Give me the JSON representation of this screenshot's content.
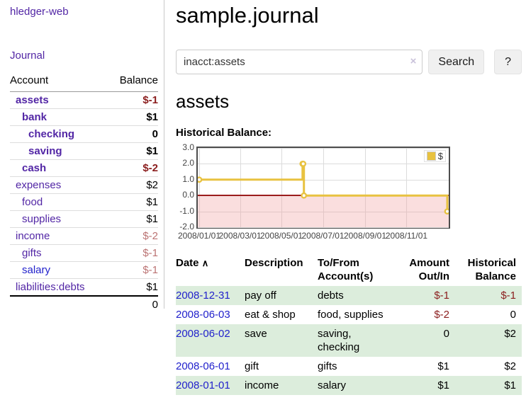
{
  "app": {
    "brand": "hledger-web",
    "nav_journal": "Journal"
  },
  "colors": {
    "accent_purple": "#5226a5",
    "link_blue": "#2222cc",
    "negative": "#8b1e1e",
    "negative_soft": "#bb7373",
    "row_highlight_green": "#dceddc",
    "series_gold": "#e8c240",
    "chart_negative_fill": "#f9dada",
    "zero_line_red": "#9b1c1c"
  },
  "sidebar": {
    "headers": {
      "account": "Account",
      "balance": "Balance"
    },
    "accounts": [
      {
        "name": "assets",
        "depth": 0,
        "bold": true,
        "balance": "$-1",
        "neg": "strong"
      },
      {
        "name": "bank",
        "depth": 1,
        "bold": true,
        "balance": "$1"
      },
      {
        "name": "checking",
        "depth": 2,
        "bold": true,
        "balance": "0"
      },
      {
        "name": "saving",
        "depth": 2,
        "bold": true,
        "balance": "$1"
      },
      {
        "name": "cash",
        "depth": 1,
        "bold": true,
        "balance": "$-2",
        "neg": "strong"
      },
      {
        "name": "expenses",
        "depth": 0,
        "bold": false,
        "balance": "$2"
      },
      {
        "name": "food",
        "depth": 1,
        "bold": false,
        "balance": "$1"
      },
      {
        "name": "supplies",
        "depth": 1,
        "bold": false,
        "balance": "$1"
      },
      {
        "name": "income",
        "depth": 0,
        "bold": false,
        "balance": "$-2",
        "neg": "soft"
      },
      {
        "name": "gifts",
        "depth": 1,
        "bold": false,
        "balance": "$-1",
        "neg": "soft"
      },
      {
        "name": "salary",
        "depth": 1,
        "bold": false,
        "balance": "$-1",
        "neg": "soft",
        "link": "blue"
      },
      {
        "name": "liabilities:debts",
        "depth": 0,
        "bold": false,
        "balance": "$1"
      }
    ],
    "total": "0"
  },
  "main": {
    "title": "sample.journal",
    "search": {
      "value": "inacct:assets",
      "clear_icon": "×",
      "search_button": "Search",
      "help_button": "?"
    },
    "account_heading": "assets",
    "chart_label": "Historical Balance:"
  },
  "chart_data": {
    "type": "line",
    "step": true,
    "title": "Historical Balance:",
    "series": [
      {
        "name": "$",
        "color": "#e8c240",
        "x": [
          "2008-01-01",
          "2008-06-01",
          "2008-06-02",
          "2008-06-03",
          "2008-12-31"
        ],
        "y": [
          1,
          2,
          2,
          0,
          -1
        ]
      }
    ],
    "x_ticks": [
      "2008/01/01",
      "2008/03/01",
      "2008/05/01",
      "2008/07/01",
      "2008/09/01",
      "2008/11/01"
    ],
    "y_ticks": [
      "3.0",
      "2.0",
      "1.0",
      "0.0",
      "-1.0",
      "-2.0"
    ],
    "xlim": [
      "2008-01-01",
      "2008-12-31"
    ],
    "ylim": [
      -2,
      3
    ],
    "grid": true,
    "legend": {
      "position": "top-right",
      "label": "$"
    },
    "zero_line_color": "#9b1c1c",
    "negative_region": {
      "from": -2,
      "to": 0,
      "fill": "#f9dada"
    }
  },
  "register": {
    "headers": {
      "date": "Date",
      "description": "Description",
      "tofrom": "To/From Account(s)",
      "amount": "Amount Out/In",
      "balance": "Historical Balance"
    },
    "sort_icon": "∧",
    "rows": [
      {
        "date": "2008-12-31",
        "description": "pay off",
        "tofrom": "debts",
        "amount": "$-1",
        "amount_neg": true,
        "balance": "$-1",
        "balance_neg": true,
        "highlight": true
      },
      {
        "date": "2008-06-03",
        "description": "eat & shop",
        "tofrom": "food, supplies",
        "amount": "$-2",
        "amount_neg": true,
        "balance": "0",
        "balance_neg": false,
        "highlight": false
      },
      {
        "date": "2008-06-02",
        "description": "save",
        "tofrom": "saving, checking",
        "amount": "0",
        "amount_neg": false,
        "balance": "$2",
        "balance_neg": false,
        "highlight": true
      },
      {
        "date": "2008-06-01",
        "description": "gift",
        "tofrom": "gifts",
        "amount": "$1",
        "amount_neg": false,
        "balance": "$2",
        "balance_neg": false,
        "highlight": false
      },
      {
        "date": "2008-01-01",
        "description": "income",
        "tofrom": "salary",
        "amount": "$1",
        "amount_neg": false,
        "balance": "$1",
        "balance_neg": false,
        "highlight": true
      }
    ]
  }
}
